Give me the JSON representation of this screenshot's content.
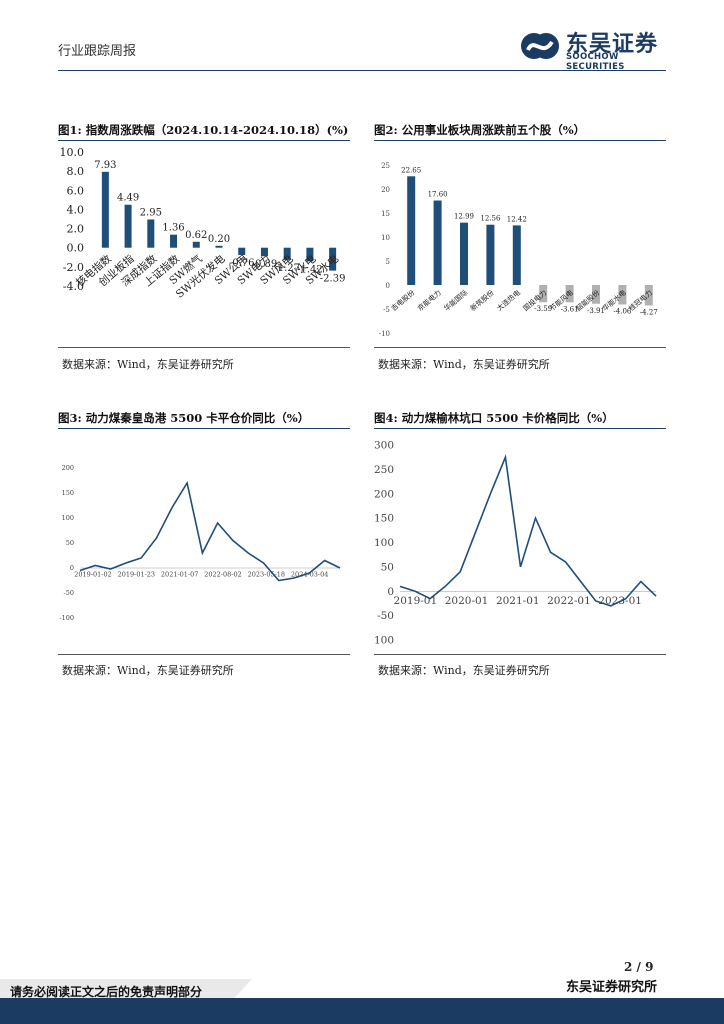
{
  "header": {
    "left": "行业跟踪周报",
    "logo_cn": "东吴证券",
    "logo_en": "SOOCHOW SECURITIES"
  },
  "figures": [
    {
      "title": "图1:  指数周涨跌幅（2024.10.14-2024.10.18）(%)",
      "source": "数据来源：Wind，东吴证券研究所"
    },
    {
      "title": "图2:  公用事业板块周涨跌前五个股（%）",
      "source": "数据来源：Wind，东吴证券研究所"
    },
    {
      "title": "图3:  动力煤秦皇岛港 5500 卡平仓价同比（%）",
      "source": "数据来源：Wind，东吴证券研究所"
    },
    {
      "title": "图4:  动力煤榆林坑口 5500 卡价格同比（%）",
      "source": "数据来源：Wind，东吴证券研究所"
    }
  ],
  "chart_data": [
    {
      "type": "bar",
      "categories": [
        "核电指数",
        "创业板指",
        "深成指数",
        "上证指数",
        "SW燃气",
        "SW光伏发电",
        "SW公用",
        "SW电力",
        "SW风电",
        "SW火电",
        "SW水电"
      ],
      "values": [
        7.93,
        4.49,
        2.95,
        1.36,
        0.62,
        0.2,
        -0.76,
        -0.89,
        -1.27,
        -1.42,
        -2.39
      ],
      "labels": [
        "7.93",
        "4.49",
        "2.95",
        "1.36",
        "0.62",
        "0.20",
        "-0.76",
        "-0.89",
        "-1.27",
        "-1.42",
        "-2.39"
      ],
      "ylim": [
        -4.0,
        10.0
      ],
      "yticks": [
        "10.0",
        "8.0",
        "6.0",
        "4.0",
        "2.0",
        "0.0",
        "-2.0",
        "-4.0"
      ],
      "colors": {
        "bar": "#1f4e79"
      }
    },
    {
      "type": "bar",
      "categories": [
        "吉电股份",
        "京能电力",
        "华能国际",
        "新筑股份",
        "大连热电",
        "国投电力",
        "节能风电",
        "韶能股份",
        "华能水电",
        "桂冠电力"
      ],
      "values": [
        22.65,
        17.6,
        12.99,
        12.56,
        12.42,
        -3.59,
        -3.61,
        -3.91,
        -4.06,
        -4.27
      ],
      "labels": [
        "22.65",
        "17.60",
        "12.99",
        "12.56",
        "12.42",
        "-3.59",
        "-3.61",
        "-3.91",
        "-4.06",
        "-4.27"
      ],
      "ylim": [
        -10,
        25
      ],
      "yticks": [
        "25",
        "20",
        "15",
        "10",
        "5",
        "0",
        "-5",
        "-10"
      ],
      "colors": {
        "positive": "#1f4e79",
        "negative": "#b0b0b0"
      }
    },
    {
      "type": "line",
      "ylim": [
        -100,
        200
      ],
      "yticks": [
        "200",
        "150",
        "100",
        "50",
        "0",
        "-50",
        "-100"
      ],
      "xticks": [
        "2019-01-02",
        "2019-01-23",
        "2021-01-07",
        "2022-08-02",
        "2023-05-18",
        "2024-03-04"
      ],
      "x": [
        "2019-01",
        "2019-07",
        "2020-01",
        "2020-07",
        "2021-01",
        "2021-05",
        "2021-09",
        "2021-10",
        "2021-12",
        "2022-03",
        "2022-06",
        "2022-09",
        "2023-01",
        "2023-05",
        "2023-09",
        "2024-01",
        "2024-06",
        "2024-10"
      ],
      "values": [
        -5,
        5,
        -2,
        10,
        20,
        60,
        120,
        170,
        30,
        90,
        55,
        30,
        10,
        -25,
        -20,
        -10,
        15,
        0
      ],
      "colors": {
        "line": "#1f4e79"
      }
    },
    {
      "type": "line",
      "ylim": [
        -100,
        300
      ],
      "yticks": [
        "300",
        "250",
        "200",
        "150",
        "100",
        "50",
        "0",
        "-50",
        "-100"
      ],
      "xticks": [
        "2019-01",
        "2020-01",
        "2021-01",
        "2022-01",
        "2023-01"
      ],
      "x": [
        "2019-01",
        "2019-07",
        "2020-01",
        "2020-07",
        "2021-01",
        "2021-05",
        "2021-09",
        "2021-10",
        "2021-12",
        "2022-03",
        "2022-06",
        "2022-09",
        "2023-01",
        "2023-05",
        "2023-09",
        "2024-01",
        "2024-06",
        "2024-10"
      ],
      "values": [
        10,
        0,
        -15,
        10,
        40,
        120,
        200,
        275,
        50,
        150,
        80,
        60,
        20,
        -20,
        -30,
        -15,
        20,
        -10
      ],
      "colors": {
        "line": "#1f4e79"
      }
    }
  ],
  "footer": {
    "page": "2  /  9",
    "right": "东吴证券研究所",
    "disclaimer": "请务必阅读正文之后的免责声明部分"
  }
}
